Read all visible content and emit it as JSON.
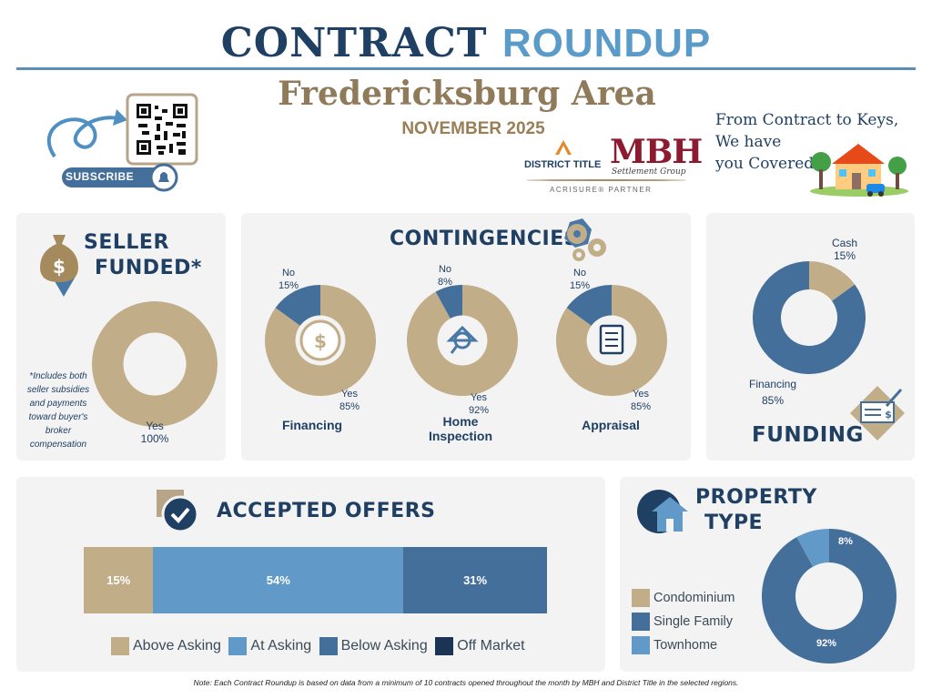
{
  "header": {
    "title_part1": "CONTRACT",
    "title_part2": "ROUNDUP",
    "area": "Fredericksburg Area",
    "month": "NOVEMBER 2025",
    "subscribe_label": "SUBSCRIBE",
    "tagline": [
      "From Contract to Keys,",
      "We have",
      "you Covered"
    ],
    "logo_district": "DISTRICT TITLE",
    "logo_mbh": "MBH",
    "logo_mbh_sub": "Settlement Group",
    "logo_partner": "ACRISURE® PARTNER"
  },
  "seller_funded": {
    "title_line1": "SELLER",
    "title_line2": "FUNDED*",
    "footnote": "*Includes both seller subsidies and payments toward buyer's broker compensation",
    "label_yes": "Yes",
    "label_yes_value": "100%"
  },
  "contingencies": {
    "title": "CONTINGENCIES",
    "items": [
      {
        "name": "Financing",
        "no_label": "No",
        "no_value": "15%",
        "yes_label": "Yes",
        "yes_value": "85%"
      },
      {
        "name_line1": "Home",
        "name_line2": "Inspection",
        "no_label": "No",
        "no_value": "8%",
        "yes_label": "Yes",
        "yes_value": "92%"
      },
      {
        "name": "Appraisal",
        "no_label": "No",
        "no_value": "15%",
        "yes_label": "Yes",
        "yes_value": "85%"
      }
    ]
  },
  "funding": {
    "title": "FUNDING",
    "cash_label": "Cash",
    "cash_value": "15%",
    "financing_label": "Financing",
    "financing_value": "85%"
  },
  "accepted_offers": {
    "title": "ACCEPTED OFFERS",
    "labels": [
      "15%",
      "54%",
      "31%"
    ],
    "legend": [
      "Above Asking",
      "At Asking",
      "Below Asking",
      "Off Market"
    ]
  },
  "property_type": {
    "title_line1": "PROPERTY",
    "title_line2": "TYPE",
    "legend": [
      "Condominium",
      "Single Family",
      "Townhome"
    ],
    "label_townhome": "8%",
    "label_single": "92%"
  },
  "footer_note": "Note: Each Contract Roundup is based on data from a minimum of 10 contracts opened throughout the month by MBH and District Title in the selected regions.",
  "colors": {
    "tan": "#c2ad89",
    "navy": "#1f3f63",
    "mid_blue": "#456f9b",
    "light_blue": "#6199c8",
    "dark_navy": "#1b3454"
  },
  "chart_data": [
    {
      "type": "pie",
      "title": "SELLER FUNDED*",
      "categories": [
        "Yes"
      ],
      "values": [
        100
      ]
    },
    {
      "type": "pie",
      "title": "Financing",
      "categories": [
        "Yes",
        "No"
      ],
      "values": [
        85,
        15
      ]
    },
    {
      "type": "pie",
      "title": "Home Inspection",
      "categories": [
        "Yes",
        "No"
      ],
      "values": [
        92,
        8
      ]
    },
    {
      "type": "pie",
      "title": "Appraisal",
      "categories": [
        "Yes",
        "No"
      ],
      "values": [
        85,
        15
      ]
    },
    {
      "type": "pie",
      "title": "FUNDING",
      "categories": [
        "Cash",
        "Financing"
      ],
      "values": [
        15,
        85
      ]
    },
    {
      "type": "bar",
      "title": "ACCEPTED OFFERS",
      "categories": [
        "Above Asking",
        "At Asking",
        "Below Asking",
        "Off Market"
      ],
      "values": [
        15,
        54,
        31,
        0
      ]
    },
    {
      "type": "pie",
      "title": "PROPERTY TYPE",
      "categories": [
        "Condominium",
        "Single Family",
        "Townhome"
      ],
      "values": [
        0,
        92,
        8
      ]
    }
  ]
}
